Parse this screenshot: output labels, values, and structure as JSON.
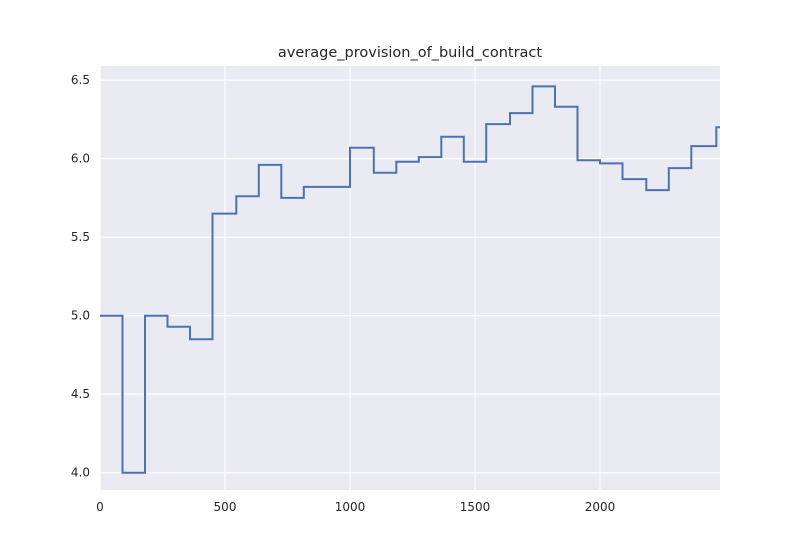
{
  "chart_data": {
    "type": "line",
    "step": "post",
    "title": "average_provision_of_build_contract",
    "xlabel": "",
    "ylabel": "",
    "xlim": [
      0,
      2480
    ],
    "ylim": [
      3.89,
      6.59
    ],
    "xticks": [
      0,
      500,
      1000,
      1500,
      2000
    ],
    "xtick_labels": [
      "0",
      "500",
      "1000",
      "1500",
      "2000"
    ],
    "yticks": [
      4.0,
      4.5,
      5.0,
      5.5,
      6.0,
      6.5
    ],
    "ytick_labels": [
      "4.0",
      "4.5",
      "5.0",
      "5.5",
      "6.0",
      "6.5"
    ],
    "grid": true,
    "colors": {
      "background": "#eaeaf2",
      "grid": "#ffffff",
      "line": "#4c72b0"
    },
    "series": [
      {
        "x": [
          0,
          90,
          180,
          270,
          360,
          450,
          545,
          635,
          725,
          815,
          1000,
          1095,
          1185,
          1275,
          1365,
          1455,
          1545,
          1640,
          1730,
          1820,
          1910,
          2000,
          2090,
          2185,
          2275,
          2365,
          2465,
          2480
        ],
        "y": [
          5.0,
          4.0,
          5.0,
          4.93,
          4.85,
          5.65,
          5.76,
          5.96,
          5.75,
          5.82,
          6.07,
          5.91,
          5.98,
          6.01,
          6.14,
          5.98,
          6.22,
          6.29,
          6.46,
          6.33,
          5.99,
          5.97,
          5.87,
          5.8,
          5.94,
          6.08,
          6.2,
          6.2
        ]
      }
    ]
  }
}
